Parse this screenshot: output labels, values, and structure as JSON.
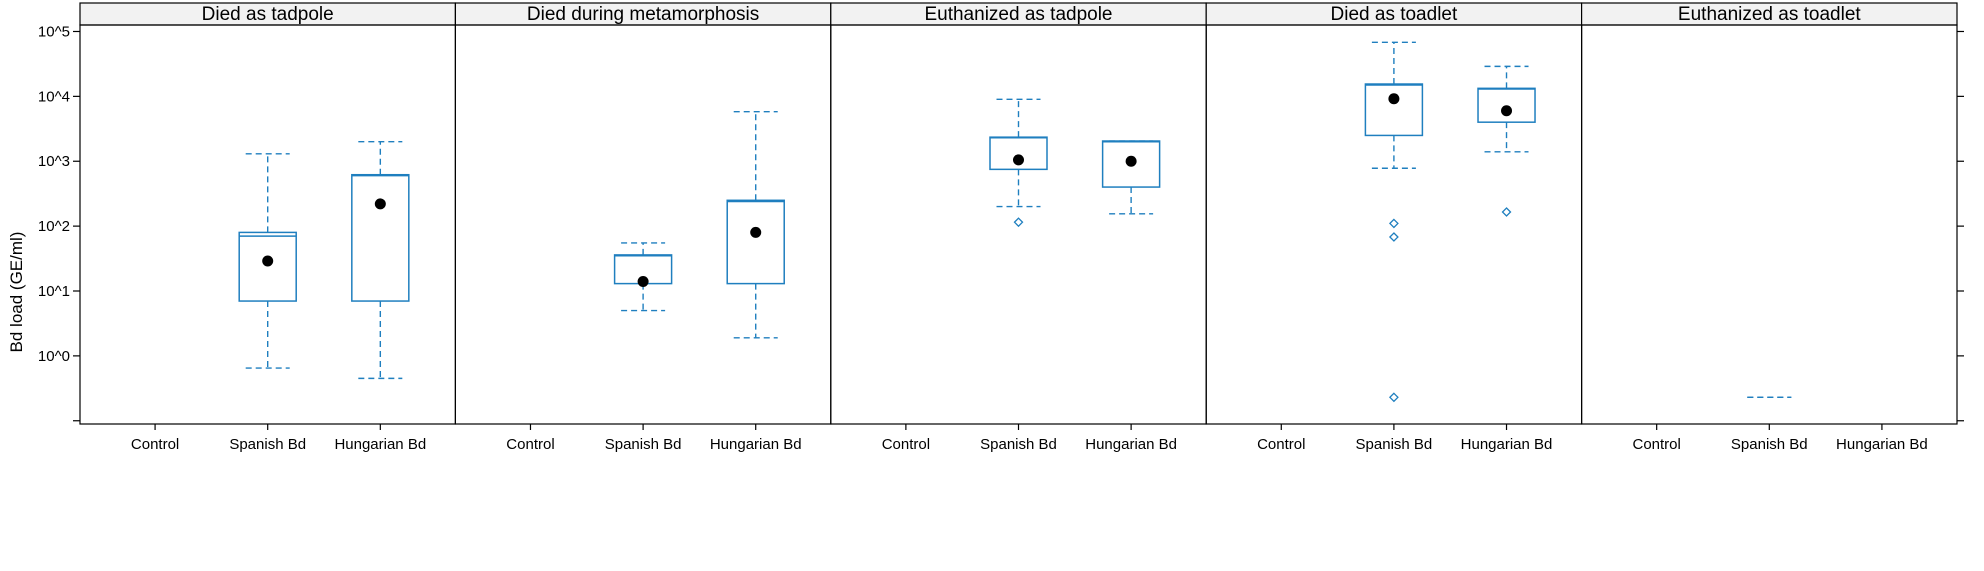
{
  "chart_data": {
    "type": "box",
    "ylabel": "Bd load (GE/ml)",
    "yscale": "log10",
    "ylim_log10": [
      -1.05,
      5.1
    ],
    "y_ticks": [
      {
        "exp": 0,
        "label": "10^0"
      },
      {
        "exp": 1,
        "label": "10^1"
      },
      {
        "exp": 2,
        "label": "10^2"
      },
      {
        "exp": 3,
        "label": "10^3"
      },
      {
        "exp": 4,
        "label": "10^4"
      },
      {
        "exp": 5,
        "label": "10^5"
      }
    ],
    "categories": [
      "Control",
      "Spanish Bd",
      "Hungarian Bd"
    ],
    "colors": {
      "box": "#1f7fbf",
      "mean": "#000000",
      "frame": "#000000",
      "strip": "#f2f2f2"
    },
    "panels": [
      {
        "title": "Died as tadpole",
        "boxes": [
          {
            "category": "Spanish Bd",
            "whisker_low": 0.65,
            "q1": 7,
            "median": 70,
            "q3": 80,
            "whisker_high": 1300,
            "mean": 29,
            "outliers": []
          },
          {
            "category": "Hungarian Bd",
            "whisker_low": 0.45,
            "q1": 7,
            "median": 600,
            "q3": 620,
            "whisker_high": 2000,
            "mean": 220,
            "outliers": []
          }
        ]
      },
      {
        "title": "Died during metamorphosis",
        "boxes": [
          {
            "category": "Spanish Bd",
            "whisker_low": 5,
            "q1": 13,
            "median": 35,
            "q3": 36,
            "whisker_high": 55,
            "mean": 14,
            "outliers": []
          },
          {
            "category": "Hungarian Bd",
            "whisker_low": 1.9,
            "q1": 13,
            "median": 240,
            "q3": 250,
            "whisker_high": 5800,
            "mean": 80,
            "outliers": []
          }
        ]
      },
      {
        "title": "Euthanized as tadpole",
        "boxes": [
          {
            "category": "Spanish Bd",
            "whisker_low": 200,
            "q1": 750,
            "median": 2300,
            "q3": 2350,
            "whisker_high": 9000,
            "mean": 1050,
            "outliers": [
              115
            ]
          },
          {
            "category": "Hungarian Bd",
            "whisker_low": 155,
            "q1": 400,
            "median": 2000,
            "q3": 2050,
            "whisker_high": 2050,
            "mean": 1000,
            "outliers": []
          }
        ]
      },
      {
        "title": "Died as toadlet",
        "boxes": [
          {
            "category": "Spanish Bd",
            "whisker_low": 780,
            "q1": 2500,
            "median": 15000,
            "q3": 15500,
            "whisker_high": 68000,
            "mean": 9200,
            "outliers": [
              110,
              68,
              0.23
            ]
          },
          {
            "category": "Hungarian Bd",
            "whisker_low": 1400,
            "q1": 4000,
            "median": 13000,
            "q3": 13300,
            "whisker_high": 29000,
            "mean": 6000,
            "outliers": [
              165
            ]
          }
        ]
      },
      {
        "title": "Euthanized as toadlet",
        "boxes": [
          {
            "category": "Spanish Bd",
            "whisker_low": 0.23,
            "q1": 0.23,
            "median": 0.23,
            "q3": 0.23,
            "whisker_high": 0.23,
            "mean": null,
            "outliers": []
          }
        ]
      }
    ]
  }
}
